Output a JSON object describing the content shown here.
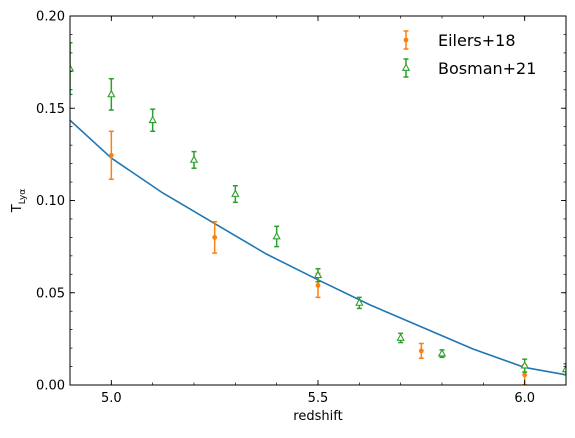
{
  "chart_data": {
    "type": "scatter",
    "xlabel": "redshift",
    "ylabel": "T",
    "ylabel_subscript": "Lyα",
    "xlim": [
      4.9,
      6.1
    ],
    "ylim": [
      0.0,
      0.2
    ],
    "x_ticks": [
      5.0,
      5.5,
      6.0
    ],
    "x_tick_labels": [
      "5.0",
      "5.5",
      "6.0"
    ],
    "y_ticks": [
      0.0,
      0.05,
      0.1,
      0.15,
      0.2
    ],
    "y_tick_labels": [
      "0.00",
      "0.05",
      "0.10",
      "0.15",
      "0.20"
    ],
    "x_minor_step": 0.1,
    "y_minor_step": 0.01,
    "grid": false,
    "legend_position": "top-right",
    "series": [
      {
        "kind": "line",
        "color": "#1f77b4",
        "x": [
          4.9,
          5.0,
          5.125,
          5.25,
          5.375,
          5.5,
          5.625,
          5.75,
          5.875,
          6.0,
          6.1
        ],
        "y": [
          0.1435,
          0.123,
          0.104,
          0.0875,
          0.071,
          0.057,
          0.0435,
          0.0315,
          0.0195,
          0.0095,
          0.0055
        ]
      },
      {
        "kind": "errorbar",
        "name": "Eilers+18",
        "color": "#ff7f0e",
        "marker": "circle",
        "x": [
          5.0,
          5.25,
          5.5,
          5.75,
          6.0
        ],
        "y": [
          0.1245,
          0.08,
          0.054,
          0.0185,
          0.0055
        ],
        "yerr": [
          0.013,
          0.0085,
          0.0065,
          0.004,
          0.0055
        ]
      },
      {
        "kind": "errorbar",
        "name": "Bosman+21",
        "color": "#2ca02c",
        "marker": "triangle",
        "x": [
          4.9,
          5.0,
          5.1,
          5.2,
          5.3,
          5.4,
          5.5,
          5.6,
          5.7,
          5.8,
          6.0,
          6.1
        ],
        "y": [
          0.1715,
          0.1575,
          0.1435,
          0.122,
          0.1035,
          0.0805,
          0.0595,
          0.0445,
          0.0255,
          0.017,
          0.0105,
          0.0085
        ],
        "yerr": [
          0.014,
          0.0085,
          0.006,
          0.0045,
          0.0045,
          0.0055,
          0.0035,
          0.003,
          0.0025,
          0.002,
          0.0035,
          0.003
        ]
      }
    ]
  }
}
